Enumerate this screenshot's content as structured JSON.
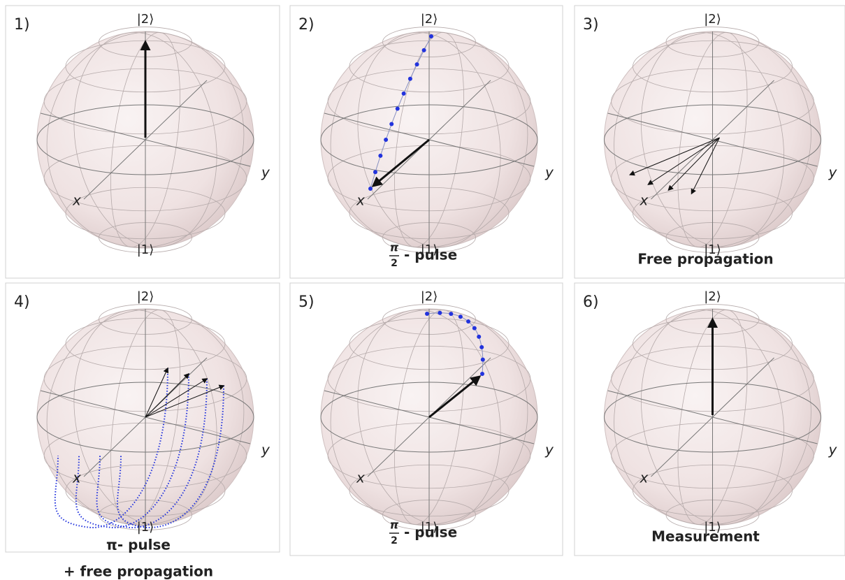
{
  "panels": [
    {
      "label": "1)",
      "top_state": "|2⟩",
      "bottom_state": "|1⟩",
      "x_axis": "x",
      "y_axis": "y"
    },
    {
      "label": "2)",
      "top_state": "|2⟩",
      "bottom_state": "|1⟩",
      "x_axis": "x",
      "y_axis": "y",
      "caption": {
        "numerator": "π",
        "denominator": "2",
        "text": "- pulse"
      }
    },
    {
      "label": "3)",
      "top_state": "|2⟩",
      "bottom_state": "|1⟩",
      "x_axis": "x",
      "y_axis": "y",
      "caption": {
        "lines": [
          "Free propagation"
        ]
      }
    },
    {
      "label": "4)",
      "top_state": "|2⟩",
      "bottom_state": "|1⟩",
      "x_axis": "x",
      "y_axis": "y",
      "caption": {
        "lines": [
          "π- pulse",
          "+ free propagation"
        ]
      }
    },
    {
      "label": "5)",
      "top_state": "|2⟩",
      "bottom_state": "|1⟩",
      "x_axis": "x",
      "y_axis": "y",
      "caption": {
        "numerator": "π",
        "denominator": "2",
        "text": "- pulse"
      }
    },
    {
      "label": "6)",
      "top_state": "|2⟩",
      "bottom_state": "|1⟩",
      "x_axis": "x",
      "y_axis": "y",
      "caption": {
        "lines": [
          "Measurement"
        ]
      }
    }
  ]
}
